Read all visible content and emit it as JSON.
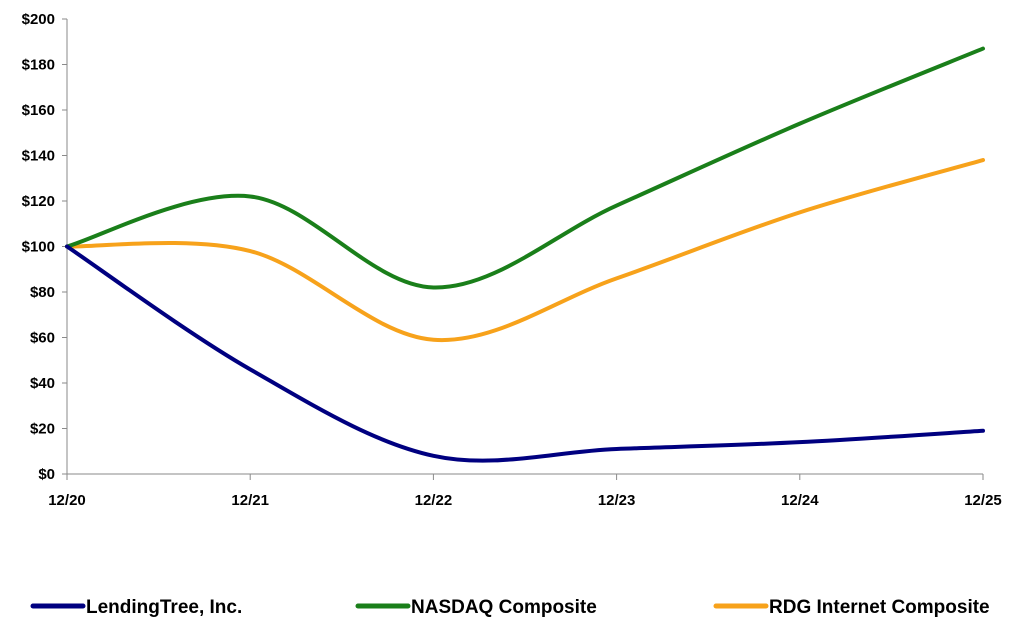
{
  "chart_data": {
    "type": "line",
    "title": "",
    "xlabel": "",
    "ylabel": "",
    "categories": [
      "12/20",
      "12/21",
      "12/22",
      "12/23",
      "12/24",
      "12/25"
    ],
    "y_tick_labels": [
      "$0",
      "$20",
      "$40",
      "$60",
      "$80",
      "$100",
      "$120",
      "$140",
      "$160",
      "$180",
      "$200"
    ],
    "y_ticks": [
      0,
      20,
      40,
      60,
      80,
      100,
      120,
      140,
      160,
      180,
      200
    ],
    "ylim": [
      0,
      200
    ],
    "grid": false,
    "legend_placement": "bottom",
    "series": [
      {
        "name": "LendingTree, Inc.",
        "color": "#000080",
        "values": [
          100,
          46,
          8,
          11,
          14,
          19
        ]
      },
      {
        "name": "NASDAQ Composite",
        "color": "#1a7f1a",
        "values": [
          100,
          122,
          82,
          118,
          154,
          187
        ]
      },
      {
        "name": "RDG Internet Composite",
        "color": "#f7a21b",
        "values": [
          100,
          98,
          59,
          86,
          115,
          138
        ]
      }
    ]
  }
}
